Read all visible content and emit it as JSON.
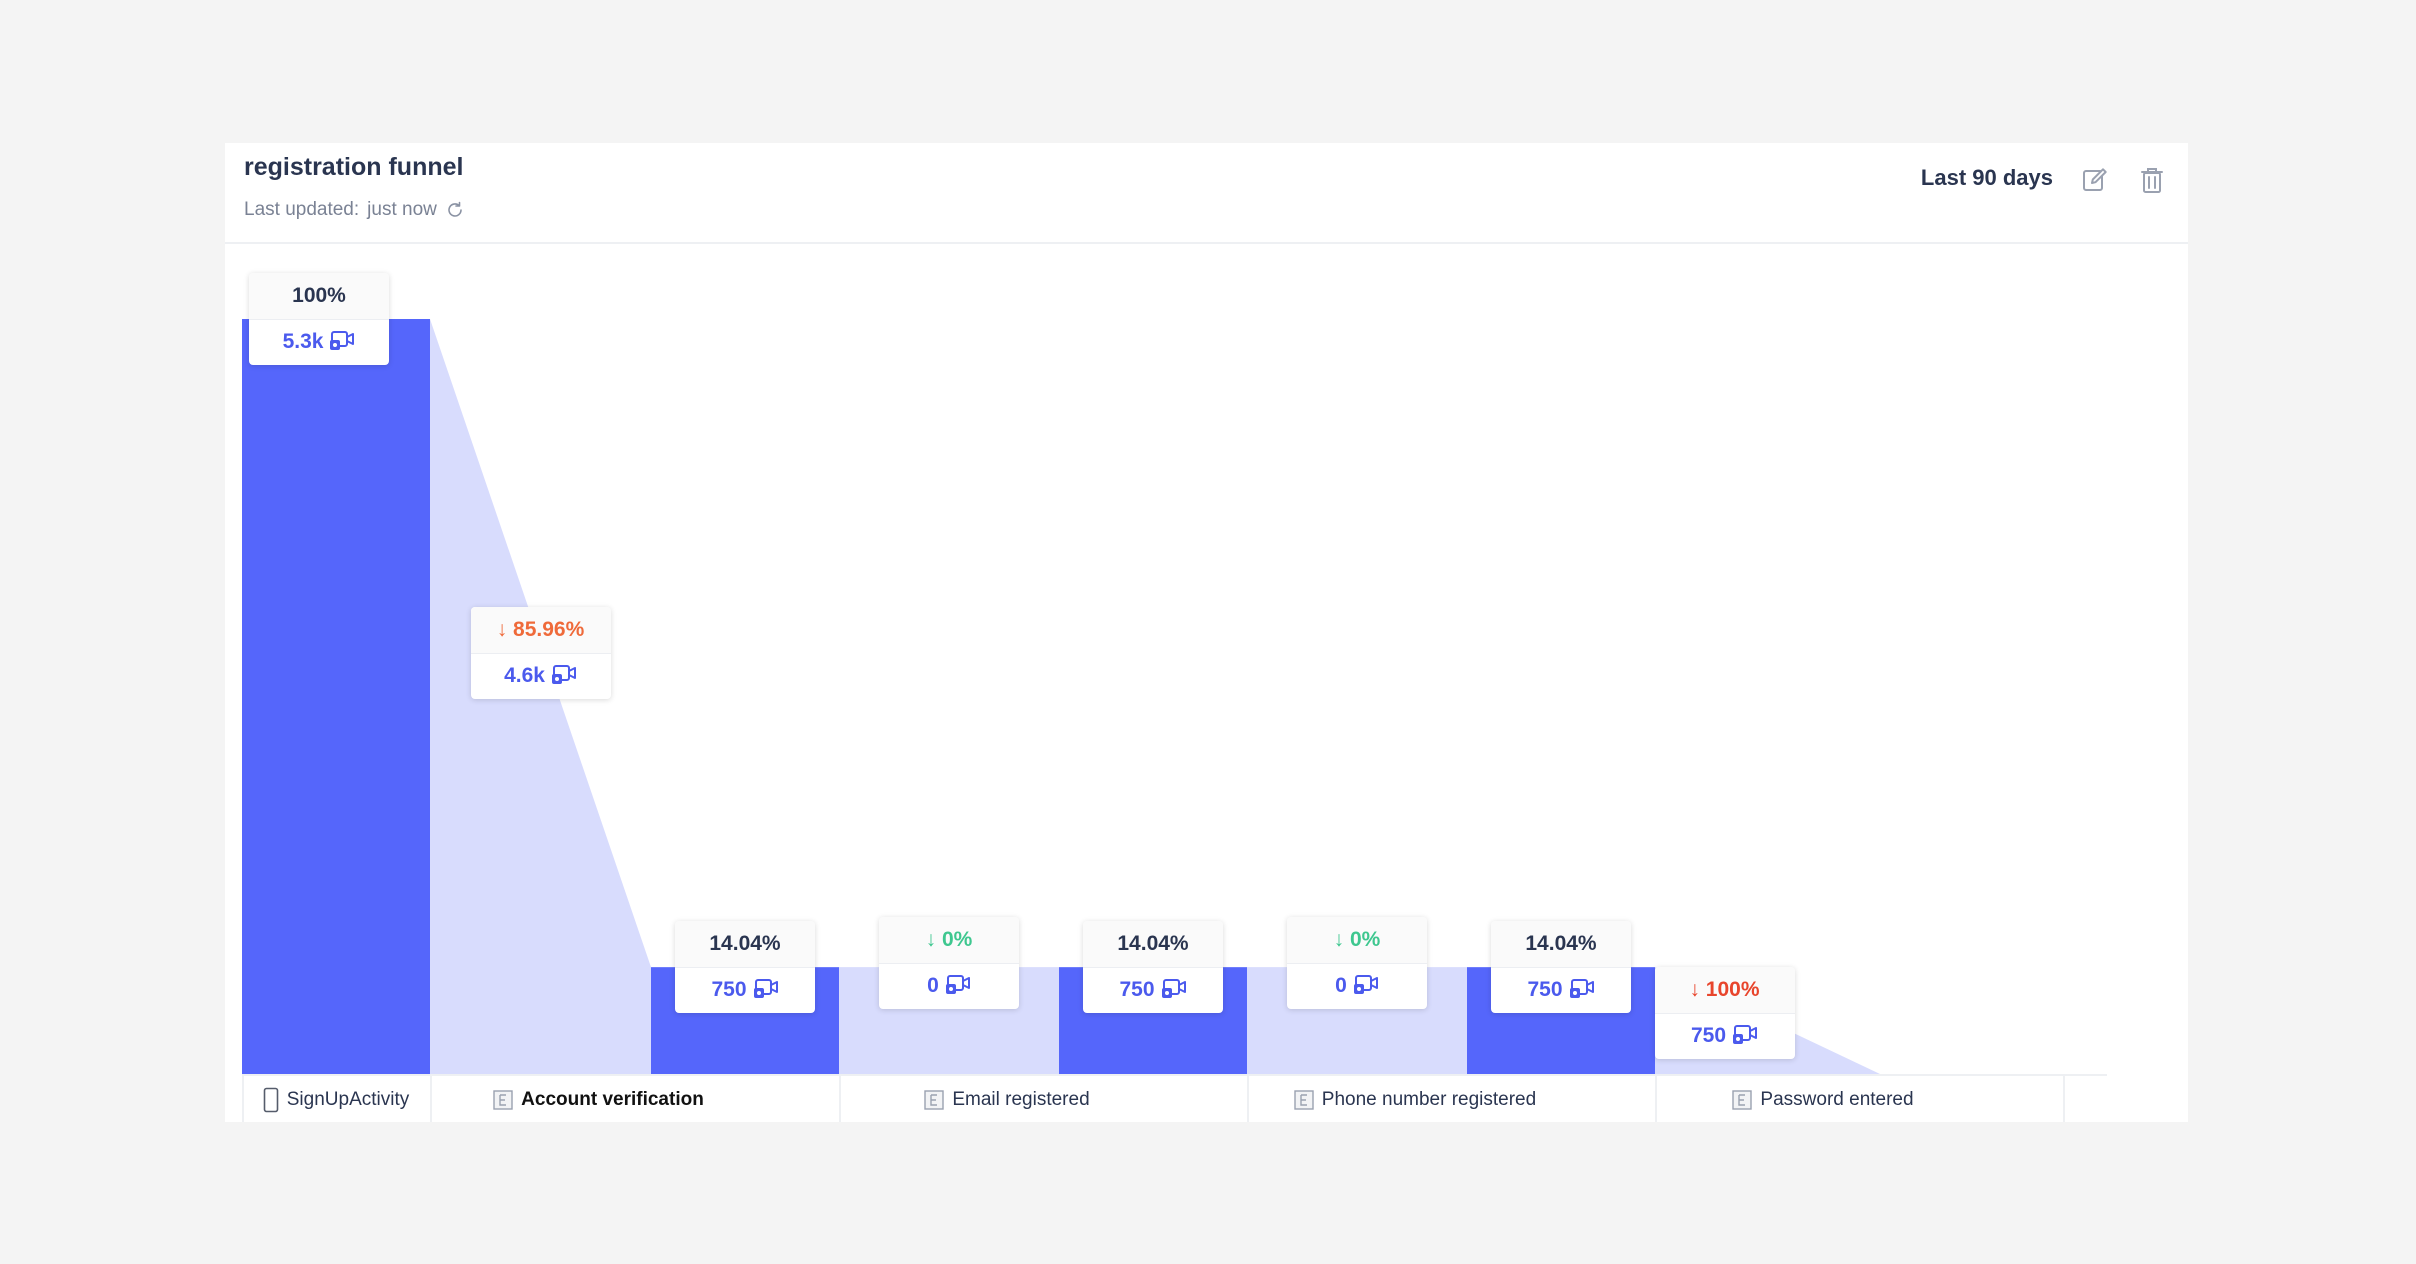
{
  "header": {
    "title": "registration funnel",
    "updated_prefix": "Last updated:",
    "updated_value": "just now",
    "date_range": "Last 90 days",
    "icons": [
      "refresh-icon",
      "edit-icon",
      "trash-icon"
    ]
  },
  "colors": {
    "bar": "#5566fb",
    "dropoff": "#d8dcfd",
    "count": "#4b5aed",
    "drop_orange": "#ef6a3a",
    "drop_green": "#3ec78f",
    "drop_red": "#e8452c"
  },
  "chart_data": {
    "type": "bar",
    "title": "registration funnel",
    "categories": [
      "SignUpActivity",
      "Account verification",
      "Email registered",
      "Phone number registered",
      "Password entered"
    ],
    "conversion_percent": [
      100,
      14.04,
      14.04,
      14.04,
      0
    ],
    "values": [
      5300,
      750,
      750,
      750,
      0
    ],
    "bar_labels": [
      {
        "percent": "100%",
        "count": "5.3k"
      },
      {
        "percent": "14.04%",
        "count": "750"
      },
      {
        "percent": "14.04%",
        "count": "750"
      },
      {
        "percent": "14.04%",
        "count": "750"
      }
    ],
    "dropoffs": [
      {
        "percent": "85.96%",
        "count": "4.6k",
        "value": 4600,
        "style": "drop"
      },
      {
        "percent": "0%",
        "count": "0",
        "value": 0,
        "style": "zero"
      },
      {
        "percent": "0%",
        "count": "0",
        "value": 0,
        "style": "zero"
      },
      {
        "percent": "100%",
        "count": "750",
        "value": 750,
        "style": "full"
      }
    ],
    "step_icons": [
      "phone-icon",
      "event-icon",
      "event-icon",
      "event-icon",
      "event-icon"
    ],
    "ylim": [
      0,
      5300
    ],
    "grid": false,
    "legend": "none"
  }
}
